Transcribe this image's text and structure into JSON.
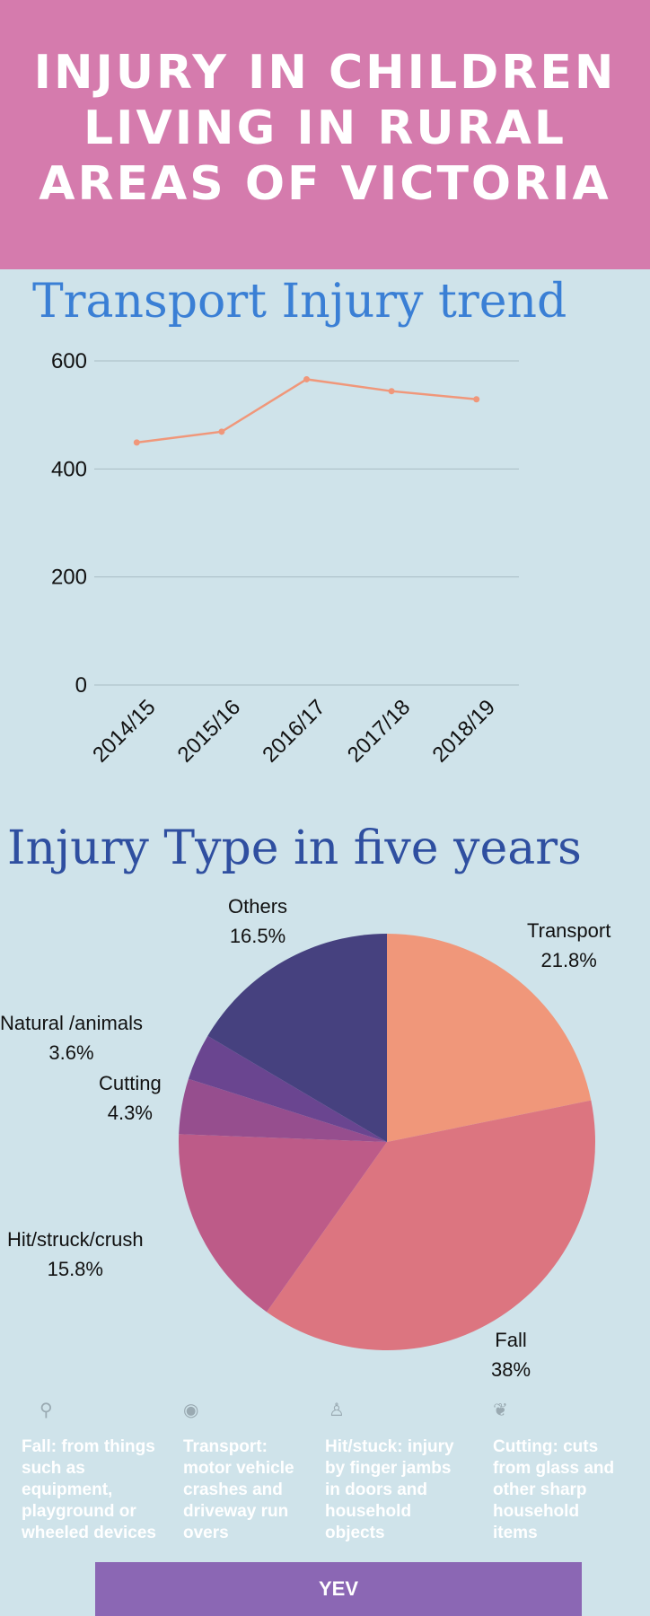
{
  "header": {
    "title_lines": [
      "INJURY IN CHILDREN",
      "LIVING IN RURAL",
      "AREAS OF VICTORIA"
    ]
  },
  "colors": {
    "header_bg": "#d57bad",
    "page_bg": "#cfe3ea",
    "trend_title": "#3a7fd5",
    "type_title": "#2f4fa0",
    "line": "#f0977a",
    "footer": "#8b67b4"
  },
  "chart_data": [
    {
      "type": "line",
      "title": "Transport Injury trend",
      "categories": [
        "2014/15",
        "2015/16",
        "2016/17",
        "2017/18",
        "2018/19"
      ],
      "series": [
        {
          "values": [
            449,
            469,
            566,
            544,
            529
          ]
        }
      ],
      "ylim": [
        0,
        600
      ],
      "yticks": [
        0,
        200,
        400,
        600
      ],
      "grid": true,
      "color": "#f0977a"
    },
    {
      "type": "pie",
      "title": "Injury Type in five years",
      "slices": [
        {
          "label": "Transport",
          "value": 21.8,
          "display": "21.8%",
          "color": "#f0977a"
        },
        {
          "label": "Fall",
          "value": 38,
          "display": "38%",
          "color": "#dc7580"
        },
        {
          "label": "Hit/struck/crush",
          "value": 15.8,
          "display": "15.8%",
          "color": "#bd5b88"
        },
        {
          "label": "Cutting",
          "value": 4.3,
          "display": "4.3%",
          "color": "#964e8e"
        },
        {
          "label": "Natural /animals",
          "value": 3.6,
          "display": "3.6%",
          "color": "#6a4590"
        },
        {
          "label": "Others",
          "value": 16.5,
          "display": "16.5%",
          "color": "#46417f"
        }
      ]
    }
  ],
  "notes": [
    {
      "icon": "balloon-icon",
      "text": "Fall: from things such as equipment, playground or wheeled devices"
    },
    {
      "icon": "eye-icon",
      "text": "Transport: motor vehicle crashes and driveway run overs"
    },
    {
      "icon": "person-icon",
      "text": "Hit/stuck: injury by finger jambs in doors and household objects"
    },
    {
      "icon": "brain-icon",
      "text": "Cutting: cuts from glass and other sharp household items"
    }
  ],
  "footer": {
    "label": "YEV"
  }
}
